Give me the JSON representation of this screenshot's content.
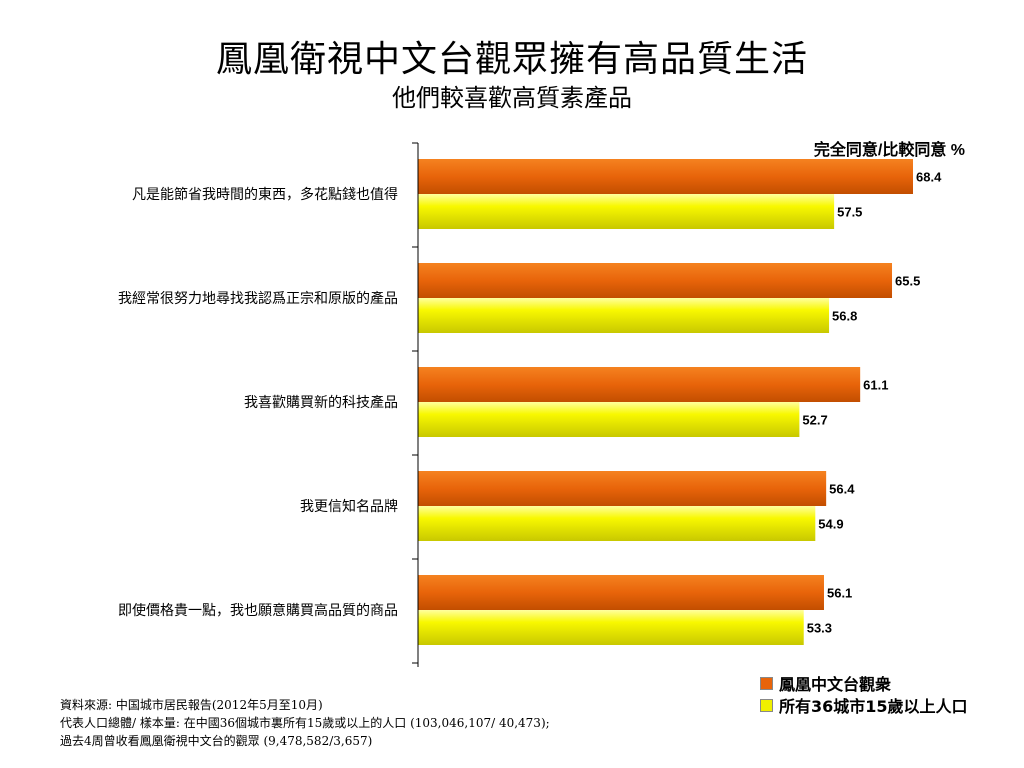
{
  "header": {
    "title": "鳳凰衛視中文台觀眾擁有高品質生活",
    "subtitle": "他們較喜歡高質素產品"
  },
  "chart_data": {
    "type": "bar",
    "orientation": "horizontal",
    "unit_label": "完全同意/比較同意 %",
    "categories": [
      "凡是能節省我時間的東西，多花點錢也值得",
      "我經常很努力地尋找我認爲正宗和原版的產品",
      "我喜歡購買新的科技產品",
      "我更信知名品牌",
      "即使價格貴一點，我也願意購買高品質的商品"
    ],
    "series": [
      {
        "name": "鳳凰中文台觀衆",
        "color": "#E8640A",
        "values": [
          68.4,
          65.5,
          61.1,
          56.4,
          56.1
        ],
        "labels": [
          "68.4",
          "65.5",
          "61.1",
          "56.4",
          "56.1"
        ]
      },
      {
        "name": "所有36城市15歲以上人口",
        "color": "#F0F000",
        "values": [
          57.5,
          56.8,
          52.7,
          54.9,
          53.3
        ],
        "labels": [
          "57.5",
          "56.8",
          "52.7",
          "54.9",
          "53.3"
        ]
      }
    ],
    "xlim": [
      0,
      70
    ],
    "legend_position": "bottom-right"
  },
  "source": {
    "lines": [
      "資料來源: 中国城市居民報告(2012年5月至10月)",
      "代表人口總體/ 樣本量: 在中國36個城市裏所有15歲或以上的人口 (103,046,107/ 40,473);",
      "過去4周曾收看鳳凰衛視中文台的觀眾 (9,478,582/3,657)"
    ]
  }
}
